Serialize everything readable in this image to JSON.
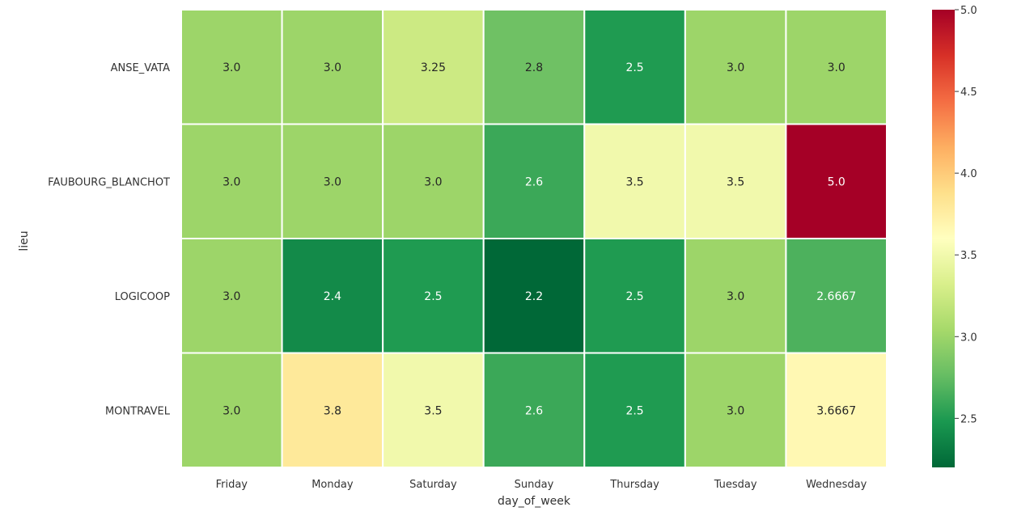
{
  "chart_data": {
    "type": "heatmap",
    "xlabel": "day_of_week",
    "ylabel": "lieu",
    "x_categories": [
      "Friday",
      "Monday",
      "Saturday",
      "Sunday",
      "Thursday",
      "Tuesday",
      "Wednesday"
    ],
    "y_categories": [
      "ANSE_VATA",
      "FAUBOURG_BLANCHOT",
      "LOGICOOP",
      "MONTRAVEL"
    ],
    "values": [
      [
        3.0,
        3.0,
        3.25,
        2.8,
        2.5,
        3.0,
        3.0
      ],
      [
        3.0,
        3.0,
        3.0,
        2.6,
        3.5,
        3.5,
        5.0
      ],
      [
        3.0,
        2.4,
        2.5,
        2.2,
        2.5,
        3.0,
        2.6667
      ],
      [
        3.0,
        3.8,
        3.5,
        2.6,
        2.5,
        3.0,
        3.6667
      ]
    ],
    "annotations": [
      [
        "3.0",
        "3.0",
        "3.25",
        "2.8",
        "2.5",
        "3.0",
        "3.0"
      ],
      [
        "3.0",
        "3.0",
        "3.0",
        "2.6",
        "3.5",
        "3.5",
        "5.0"
      ],
      [
        "3.0",
        "2.4",
        "2.5",
        "2.2",
        "2.5",
        "3.0",
        "2.6667"
      ],
      [
        "3.0",
        "3.8",
        "3.5",
        "2.6",
        "2.5",
        "3.0",
        "3.6667"
      ]
    ],
    "colormap": "RdYlGn_r",
    "vmin": 2.2,
    "vmax": 5.0,
    "colorbar_ticks": [
      2.5,
      3.0,
      3.5,
      4.0,
      4.5,
      5.0
    ],
    "colorbar_tick_labels": [
      "2.5",
      "3.0",
      "3.5",
      "4.0",
      "4.5",
      "5.0"
    ]
  }
}
